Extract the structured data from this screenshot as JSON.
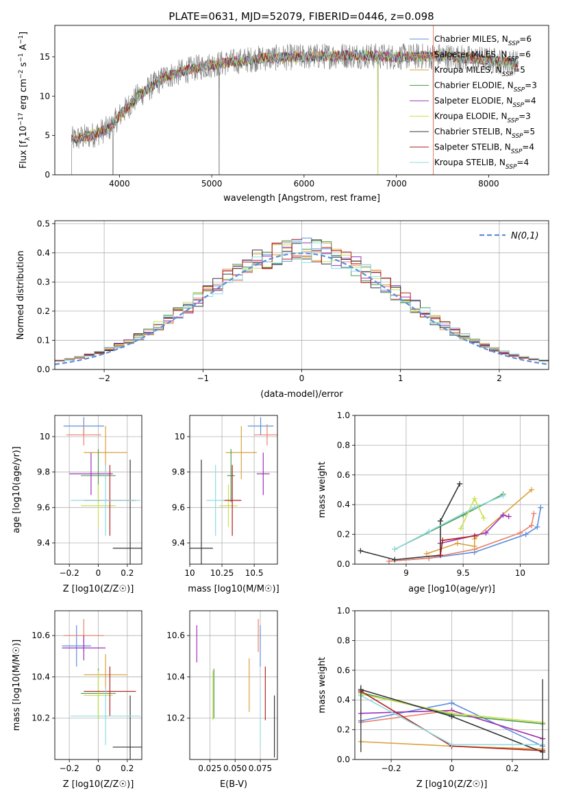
{
  "figure_title": "PLATE=0631, MJD=52079, FIBERID=0446, z=0.098",
  "colors": {
    "chabrier_miles": "#5b8ddb",
    "salpeter_miles": "#e8816b",
    "kroupa_miles": "#d9a03a",
    "chabrier_elodie": "#4f9a4f",
    "salpeter_elodie": "#9b2fb8",
    "kroupa_elodie": "#c9e04a",
    "chabrier_stelib": "#333333",
    "salpeter_stelib": "#b21d1d",
    "kroupa_stelib": "#8fdbe0",
    "data_grey": "#808080",
    "dashed_normal": "#5b8ddb",
    "grid": "#b0b0b0"
  },
  "chart_data": [
    {
      "id": "spectrum",
      "type": "line",
      "xlabel": "wavelength [Angstrom, rest frame]",
      "ylabel": "Flux [f_λ 10^-17 erg cm^-2 s^-1 A^-1]",
      "xlim": [
        3300,
        8650
      ],
      "ylim": [
        0,
        19
      ],
      "xticks": [
        4000,
        5000,
        6000,
        7000,
        8000
      ],
      "yticks": [
        0,
        5,
        10,
        15
      ],
      "grid": false,
      "legend_position": "top-right",
      "legend": [
        {
          "label": "Chabrier MILES, N_SSP=6",
          "color_key": "chabrier_miles"
        },
        {
          "label": "Salpeter MILES, N_SSP=6",
          "color_key": "salpeter_miles"
        },
        {
          "label": "Kroupa MILES, N_SSP=5",
          "color_key": "kroupa_miles"
        },
        {
          "label": "Chabrier ELODIE, N_SSP=3",
          "color_key": "chabrier_elodie"
        },
        {
          "label": "Salpeter ELODIE, N_SSP=4",
          "color_key": "salpeter_elodie"
        },
        {
          "label": "Kroupa ELODIE, N_SSP=3",
          "color_key": "kroupa_elodie"
        },
        {
          "label": "Chabrier STELIB, N_SSP=5",
          "color_key": "chabrier_stelib"
        },
        {
          "label": "Salpeter STELIB, N_SSP=4",
          "color_key": "salpeter_stelib"
        },
        {
          "label": "Kroupa STELIB, N_SSP=4",
          "color_key": "kroupa_stelib"
        }
      ],
      "continuum": {
        "x": [
          3500,
          3700,
          3900,
          4000,
          4200,
          4500,
          4800,
          5000,
          5500,
          6000,
          6500,
          7000,
          7500,
          8000,
          8300
        ],
        "y": [
          4.5,
          5.0,
          6.0,
          7.5,
          10.0,
          12.5,
          13.5,
          14.0,
          14.8,
          15.0,
          15.2,
          15.0,
          15.1,
          14.6,
          14.2
        ]
      },
      "dips": [
        {
          "x": 3480,
          "y": 0
        },
        {
          "x": 3930,
          "y": 0
        },
        {
          "x": 5080,
          "y": 0
        },
        {
          "x": 6800,
          "y": 0
        },
        {
          "x": 7400,
          "y": 0
        }
      ]
    },
    {
      "id": "residual-histogram",
      "type": "bar",
      "xlabel": "(data-model)/error",
      "ylabel": "Normed distribution",
      "xlim": [
        -2.5,
        2.5
      ],
      "ylim": [
        0,
        0.51
      ],
      "xticks": [
        -2,
        -1,
        0,
        1,
        2
      ],
      "yticks": [
        0.0,
        0.1,
        0.2,
        0.3,
        0.4,
        0.5
      ],
      "grid": true,
      "legend_position": "top-right",
      "normal_label": "N(0,1)",
      "bin_width": 0.1,
      "bin_start": -2.5
    },
    {
      "id": "age-vs-Z",
      "type": "scatter",
      "xlabel": "Z [log10(Z/Z☉)]",
      "ylabel": "age  [log10(age/yr)]",
      "xlim": [
        -0.3,
        0.3
      ],
      "ylim": [
        9.28,
        10.12
      ],
      "xticks": [
        -0.2,
        0.0,
        0.2
      ],
      "yticks": [
        9.4,
        9.6,
        9.8,
        10.0
      ],
      "grid": true,
      "points": [
        {
          "color_key": "chabrier_miles",
          "x": -0.1,
          "xerr": 0.14,
          "y": 10.06,
          "yerr": 0.05
        },
        {
          "color_key": "salpeter_miles",
          "x": -0.1,
          "xerr": 0.12,
          "y": 10.01,
          "yerr": 0.06
        },
        {
          "color_key": "kroupa_miles",
          "x": 0.05,
          "xerr": 0.15,
          "y": 9.91,
          "yerr": 0.15
        },
        {
          "color_key": "chabrier_elodie",
          "x": 0.0,
          "xerr": 0.12,
          "y": 9.78,
          "yerr": 0.15
        },
        {
          "color_key": "salpeter_elodie",
          "x": -0.05,
          "xerr": 0.15,
          "y": 9.79,
          "yerr": 0.12
        },
        {
          "color_key": "kroupa_elodie",
          "x": 0.0,
          "xerr": 0.12,
          "y": 9.61,
          "yerr": 0.12
        },
        {
          "color_key": "chabrier_stelib",
          "x": 0.22,
          "xerr": 0.12,
          "y": 9.37,
          "yerr": 0.5
        },
        {
          "color_key": "salpeter_stelib",
          "x": 0.08,
          "xerr": 0.18,
          "y": 9.64,
          "yerr": 0.2
        },
        {
          "color_key": "kroupa_stelib",
          "x": 0.05,
          "xerr": 0.24,
          "y": 9.64,
          "yerr": 0.2
        }
      ]
    },
    {
      "id": "age-vs-mass",
      "type": "scatter",
      "xlabel": "mass [log10(M/M☉)]",
      "ylabel": "",
      "xlim": [
        10.0,
        10.68
      ],
      "ylim": [
        9.28,
        10.12
      ],
      "xticks": [
        10.0,
        10.25,
        10.5
      ],
      "yticks": [
        9.4,
        9.6,
        9.8,
        10.0
      ],
      "grid": true,
      "points": [
        {
          "color_key": "chabrier_miles",
          "x": 10.55,
          "xerr": 0.1,
          "y": 10.06,
          "yerr": 0.05
        },
        {
          "color_key": "salpeter_miles",
          "x": 10.6,
          "xerr": 0.1,
          "y": 10.01,
          "yerr": 0.06
        },
        {
          "color_key": "kroupa_miles",
          "x": 10.4,
          "xerr": 0.12,
          "y": 9.91,
          "yerr": 0.15
        },
        {
          "color_key": "chabrier_elodie",
          "x": 10.32,
          "xerr": 0.03,
          "y": 9.78,
          "yerr": 0.15
        },
        {
          "color_key": "salpeter_elodie",
          "x": 10.57,
          "xerr": 0.05,
          "y": 9.79,
          "yerr": 0.12
        },
        {
          "color_key": "kroupa_elodie",
          "x": 10.3,
          "xerr": 0.07,
          "y": 9.61,
          "yerr": 0.12
        },
        {
          "color_key": "chabrier_stelib",
          "x": 10.09,
          "xerr": 0.09,
          "y": 9.37,
          "yerr": 0.5
        },
        {
          "color_key": "salpeter_stelib",
          "x": 10.33,
          "xerr": 0.07,
          "y": 9.64,
          "yerr": 0.2
        },
        {
          "color_key": "kroupa_stelib",
          "x": 10.2,
          "xerr": 0.07,
          "y": 9.64,
          "yerr": 0.2
        }
      ]
    },
    {
      "id": "mass-weight-vs-age",
      "type": "line",
      "xlabel": "age  [log10(age/yr)]",
      "ylabel": "mass weight",
      "xlim": [
        8.55,
        10.25
      ],
      "ylim": [
        0.0,
        1.0
      ],
      "xticks": [
        9.0,
        9.5,
        10.0
      ],
      "yticks": [
        0.0,
        0.2,
        0.4,
        0.6,
        0.8,
        1.0
      ],
      "grid": true,
      "series": [
        {
          "color_key": "chabrier_miles",
          "x": [
            8.85,
            9.2,
            9.6,
            10.05,
            10.15,
            10.18
          ],
          "y": [
            0.02,
            0.04,
            0.08,
            0.2,
            0.25,
            0.38
          ]
        },
        {
          "color_key": "salpeter_miles",
          "x": [
            8.85,
            9.2,
            9.6,
            10.0,
            10.1,
            10.12
          ],
          "y": [
            0.02,
            0.04,
            0.1,
            0.21,
            0.26,
            0.34
          ]
        },
        {
          "color_key": "kroupa_miles",
          "x": [
            9.18,
            9.45,
            9.6,
            9.6,
            10.1
          ],
          "y": [
            0.07,
            0.14,
            0.12,
            0.17,
            0.5
          ]
        },
        {
          "color_key": "chabrier_elodie",
          "x": [
            8.9,
            9.5,
            9.85
          ],
          "y": [
            0.1,
            0.33,
            0.47
          ]
        },
        {
          "color_key": "salpeter_elodie",
          "x": [
            9.3,
            9.7,
            9.85,
            9.9
          ],
          "y": [
            0.14,
            0.21,
            0.33,
            0.32
          ]
        },
        {
          "color_key": "kroupa_elodie",
          "x": [
            9.48,
            9.6,
            9.68
          ],
          "y": [
            0.24,
            0.44,
            0.31
          ]
        },
        {
          "color_key": "chabrier_stelib",
          "x": [
            8.6,
            8.9,
            9.3,
            9.3,
            9.47
          ],
          "y": [
            0.09,
            0.03,
            0.06,
            0.29,
            0.54
          ]
        },
        {
          "color_key": "salpeter_stelib",
          "x": [
            9.3,
            9.32,
            9.6
          ],
          "y": [
            0.06,
            0.16,
            0.19
          ]
        },
        {
          "color_key": "kroupa_stelib",
          "x": [
            8.9,
            9.2,
            9.6,
            9.85
          ],
          "y": [
            0.1,
            0.22,
            0.38,
            0.46
          ]
        }
      ]
    },
    {
      "id": "mass-vs-Z",
      "type": "scatter",
      "xlabel": "Z [log10(Z/Z☉)]",
      "ylabel": "mass [log10(M/M☉)]",
      "xlim": [
        -0.3,
        0.3
      ],
      "ylim": [
        10.0,
        10.72
      ],
      "xticks": [
        -0.2,
        0.0,
        0.2
      ],
      "yticks": [
        10.2,
        10.4,
        10.6
      ],
      "grid": true,
      "points": [
        {
          "color_key": "chabrier_miles",
          "x": -0.15,
          "xerr": 0.1,
          "y": 10.55,
          "yerr": 0.1
        },
        {
          "color_key": "salpeter_miles",
          "x": -0.1,
          "xerr": 0.14,
          "y": 10.6,
          "yerr": 0.08
        },
        {
          "color_key": "kroupa_miles",
          "x": 0.05,
          "xerr": 0.15,
          "y": 10.41,
          "yerr": 0.1
        },
        {
          "color_key": "chabrier_elodie",
          "x": 0.0,
          "xerr": 0.12,
          "y": 10.32,
          "yerr": 0.12
        },
        {
          "color_key": "salpeter_elodie",
          "x": -0.1,
          "xerr": 0.15,
          "y": 10.54,
          "yerr": 0.06
        },
        {
          "color_key": "kroupa_elodie",
          "x": 0.0,
          "xerr": 0.1,
          "y": 10.31,
          "yerr": 0.12
        },
        {
          "color_key": "chabrier_stelib",
          "x": 0.22,
          "xerr": 0.12,
          "y": 10.06,
          "yerr": 0.25
        },
        {
          "color_key": "salpeter_stelib",
          "x": 0.08,
          "xerr": 0.18,
          "y": 10.33,
          "yerr": 0.12
        },
        {
          "color_key": "kroupa_stelib",
          "x": 0.05,
          "xerr": 0.24,
          "y": 10.21,
          "yerr": 0.14
        }
      ]
    },
    {
      "id": "mass-vs-ebv",
      "type": "scatter",
      "xlabel": "E(B-V)",
      "ylabel": "",
      "xlim": [
        0.005,
        0.092
      ],
      "ylim": [
        10.0,
        10.72
      ],
      "xticks": [
        0.025,
        0.05,
        0.075
      ],
      "xticklabels": [
        "0.025",
        "0.050",
        "0.075"
      ],
      "yticks": [
        10.2,
        10.4,
        10.6
      ],
      "grid": true,
      "points": [
        {
          "color_key": "chabrier_miles",
          "x": 0.075,
          "y": 10.55,
          "yerr": 0.1
        },
        {
          "color_key": "salpeter_miles",
          "x": 0.073,
          "y": 10.6,
          "yerr": 0.08
        },
        {
          "color_key": "kroupa_miles",
          "x": 0.064,
          "y": 10.36,
          "yerr": 0.13
        },
        {
          "color_key": "chabrier_elodie",
          "x": 0.029,
          "y": 10.32,
          "yerr": 0.12
        },
        {
          "color_key": "salpeter_elodie",
          "x": 0.012,
          "y": 10.56,
          "yerr": 0.09
        },
        {
          "color_key": "kroupa_elodie",
          "x": 0.028,
          "y": 10.31,
          "yerr": 0.12
        },
        {
          "color_key": "chabrier_stelib",
          "x": 0.089,
          "y": 10.16,
          "yerr": 0.15
        },
        {
          "color_key": "salpeter_stelib",
          "x": 0.08,
          "y": 10.32,
          "yerr": 0.13
        },
        {
          "color_key": "kroupa_stelib",
          "x": 0.075,
          "y": 10.2,
          "yerr": 0.14
        }
      ]
    },
    {
      "id": "mass-weight-vs-Z",
      "type": "line",
      "xlabel": "Z [log10(Z/Z☉)]",
      "ylabel": "mass weight",
      "xlim": [
        -0.32,
        0.32
      ],
      "ylim": [
        0.0,
        1.0
      ],
      "xticks": [
        -0.2,
        0.0,
        0.2
      ],
      "yticks": [
        0.0,
        0.2,
        0.4,
        0.6,
        0.8,
        1.0
      ],
      "grid": true,
      "series": [
        {
          "color_key": "chabrier_miles",
          "x": [
            -0.3,
            0.0,
            0.3
          ],
          "y": [
            0.26,
            0.38,
            0.09
          ]
        },
        {
          "color_key": "salpeter_miles",
          "x": [
            -0.3,
            0.0,
            0.3
          ],
          "y": [
            0.25,
            0.33,
            0.14
          ]
        },
        {
          "color_key": "kroupa_miles",
          "x": [
            -0.3,
            0.0,
            0.3
          ],
          "y": [
            0.12,
            0.09,
            0.07
          ]
        },
        {
          "color_key": "chabrier_elodie",
          "x": [
            -0.3,
            0.0,
            0.3
          ],
          "y": [
            0.45,
            0.3,
            0.24
          ]
        },
        {
          "color_key": "salpeter_elodie",
          "x": [
            -0.3,
            0.0,
            0.3
          ],
          "y": [
            0.31,
            0.33,
            0.14
          ]
        },
        {
          "color_key": "kroupa_elodie",
          "x": [
            -0.3,
            0.0,
            0.3
          ],
          "y": [
            0.44,
            0.31,
            0.25
          ]
        },
        {
          "color_key": "chabrier_stelib",
          "x": [
            -0.3,
            0.0,
            0.3
          ],
          "y": [
            0.47,
            0.29,
            0.05
          ]
        },
        {
          "color_key": "salpeter_stelib",
          "x": [
            -0.3,
            0.0,
            0.3
          ],
          "y": [
            0.46,
            0.09,
            0.06
          ]
        },
        {
          "color_key": "kroupa_stelib",
          "x": [
            -0.3,
            0.0,
            0.3
          ],
          "y": [
            0.43,
            0.1,
            0.1
          ]
        }
      ],
      "errorbars_at": [
        {
          "x": -0.3,
          "ylo": 0.05,
          "yhi": 0.5
        },
        {
          "x": 0.3,
          "ylo": 0.0,
          "yhi": 0.54
        }
      ]
    }
  ]
}
